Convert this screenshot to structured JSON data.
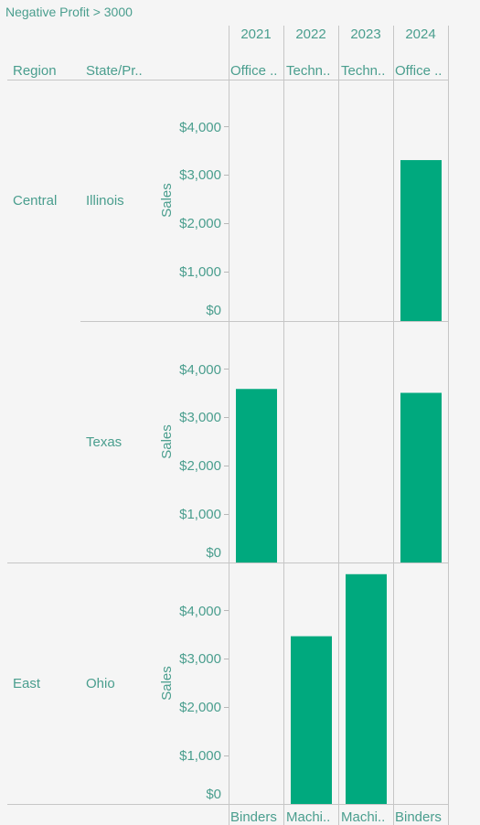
{
  "title": "Negative Profit > 3000",
  "header": {
    "row_label": "Region",
    "state_label": "State/Pr..",
    "years": [
      "2021",
      "2022",
      "2023",
      "2024"
    ]
  },
  "chart_data": {
    "type": "bar",
    "title": "Negative Profit > 3000",
    "xlabel": "",
    "ylabel": "Sales",
    "y_ticks": [
      "$4,000",
      "$3,000",
      "$2,000",
      "$1,000",
      "$0"
    ],
    "ylim": [
      0,
      5000
    ],
    "columns": [
      "2021",
      "2022",
      "2023",
      "2024"
    ],
    "grid": true,
    "color": "#00a97e",
    "rows": [
      {
        "region": "Central",
        "state": "Illinois",
        "top_labels": [
          "Office ..",
          "Techn..",
          "Techn..",
          "Office .."
        ],
        "values": [
          null,
          null,
          null,
          3320
        ]
      },
      {
        "region": "",
        "state": "Texas",
        "values": [
          3580,
          null,
          null,
          3500
        ]
      },
      {
        "region": "East",
        "state": "Ohio",
        "bottom_labels": [
          "Binders",
          "Machi..",
          "Machi..",
          "Binders"
        ],
        "values": [
          null,
          3460,
          4740,
          null
        ]
      }
    ]
  }
}
